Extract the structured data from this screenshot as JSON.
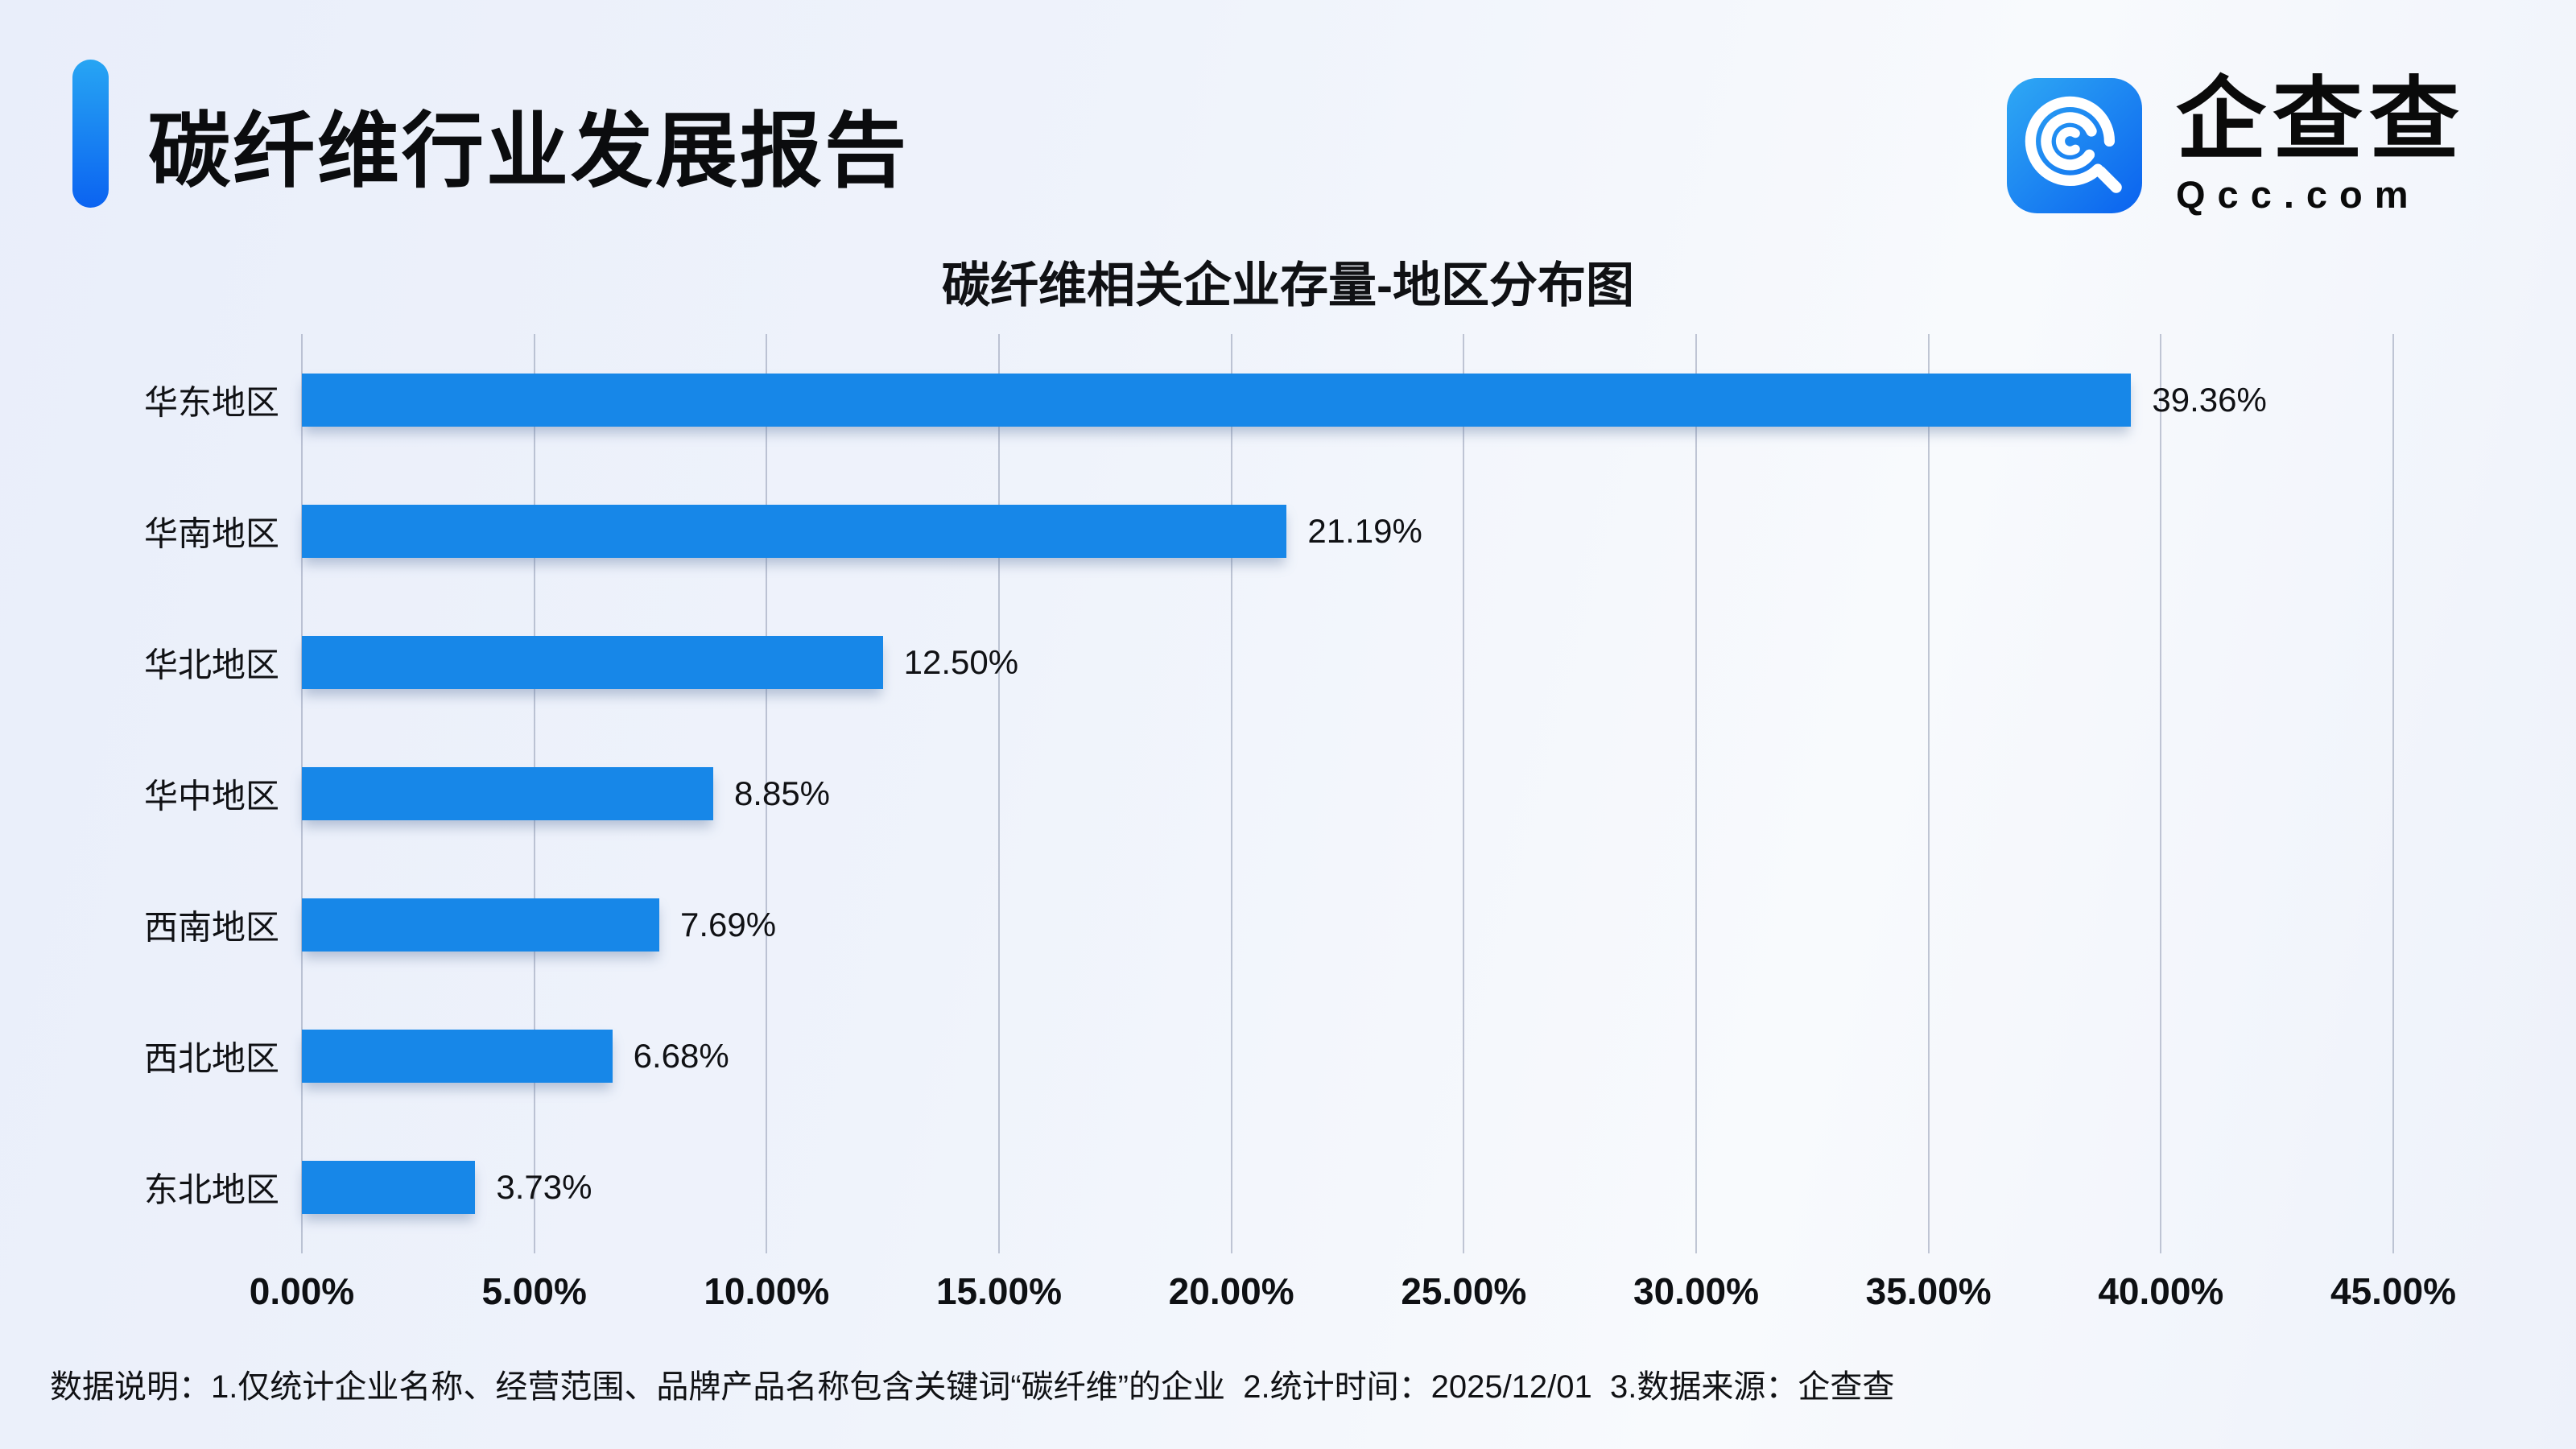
{
  "header": {
    "title": "碳纤维行业发展报告"
  },
  "logo": {
    "name": "企查查",
    "domain": "Qcc.com"
  },
  "colors": {
    "bar_color": "#1787E8",
    "accent_from": "#27A5F3",
    "accent_to": "#0B63F1",
    "background": "#EDF2FB",
    "gridline": "rgba(145,155,178,0.55)"
  },
  "chart_data": {
    "type": "bar",
    "orientation": "horizontal",
    "title": "碳纤维相关企业存量-地区分布图",
    "categories": [
      "华东地区",
      "华南地区",
      "华北地区",
      "华中地区",
      "西南地区",
      "西北地区",
      "东北地区"
    ],
    "values": [
      39.36,
      21.19,
      12.5,
      8.85,
      7.69,
      6.68,
      3.73
    ],
    "value_labels": [
      "39.36%",
      "21.19%",
      "12.50%",
      "8.85%",
      "7.69%",
      "6.68%",
      "3.73%"
    ],
    "xlabel": "",
    "ylabel": "",
    "xlim": [
      0,
      45
    ],
    "x_ticks": [
      "0.00%",
      "5.00%",
      "10.00%",
      "15.00%",
      "20.00%",
      "25.00%",
      "30.00%",
      "35.00%",
      "40.00%",
      "45.00%"
    ],
    "grid": true,
    "legend_position": "none"
  },
  "footer": {
    "notes": "数据说明：1.仅统计企业名称、经营范围、品牌产品名称包含关键词“碳纤维”的企业  2.统计时间：2025/12/01  3.数据来源：企查查"
  }
}
